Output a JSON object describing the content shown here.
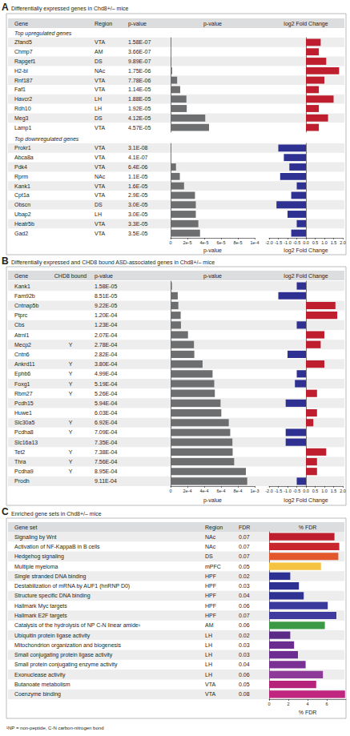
{
  "chart_data": [
    {
      "panel": "A",
      "type": "bar",
      "orientation": "horizontal",
      "title": "Differentially expressed genes in Chd8+/– mice",
      "columns": [
        "Gene",
        "Region",
        "p-value",
        "p-value",
        "log2 Fold Change"
      ],
      "groups": [
        {
          "label": "Top upregulated genes",
          "categories": [
            "Zfand5",
            "Chmp7",
            "Rapgef1",
            "H2-bl",
            "Rnf187",
            "Faf1",
            "Havcr2",
            "Rdh10",
            "Meg3",
            "Lamp1"
          ],
          "regions": [
            "VTA",
            "AM",
            "DS",
            "NAc",
            "VTA",
            "VTA",
            "LH",
            "LH",
            "DS",
            "VTA"
          ],
          "p_values": [
            1.58e-07,
            3.66e-07,
            9.89e-07,
            1.75e-06,
            7.78e-06,
            1.14e-05,
            1.88e-05,
            1.92e-05,
            4.12e-05,
            4.57e-05
          ],
          "p_value_labels": [
            "1.58E-07",
            "3.66E-07",
            "9.89E-07",
            "1.75E-06",
            "7.78E-06",
            "1.14E-05",
            "1.88E-05",
            "1.92E-05",
            "4.12E-05",
            "4.57E-05"
          ],
          "log2_fold_change": [
            0.8,
            0.7,
            1.1,
            1.8,
            1.0,
            0.7,
            1.5,
            0.7,
            1.2,
            0.7
          ],
          "colors": [
            "#be1e2d",
            "#be1e2d",
            "#be1e2d",
            "#be1e2d",
            "#be1e2d",
            "#be1e2d",
            "#be1e2d",
            "#be1e2d",
            "#be1e2d",
            "#be1e2d"
          ]
        },
        {
          "label": "Top downregulated genes",
          "categories": [
            "Prokr1",
            "Abca8a",
            "Pdk4",
            "Rprm",
            "Kank1",
            "Cpt1a",
            "Obscn",
            "Ubap2",
            "Heatr5b",
            "Gad2"
          ],
          "regions": [
            "VTA",
            "VTA",
            "VTA",
            "NAc",
            "VTA",
            "VTA",
            "DS",
            "LH",
            "VTA",
            "VTA"
          ],
          "p_values": [
            3.1e-08,
            4.1e-07,
            6.4e-06,
            1.1e-05,
            1.6e-05,
            2.9e-05,
            3e-05,
            3e-05,
            3.3e-05,
            3.5e-05
          ],
          "p_value_labels": [
            "3.1E-08",
            "4.1E-07",
            "6.4E-06",
            "1.1E-05",
            "1.6E-05",
            "2.9E-05",
            "3.0E-05",
            "3.0E-05",
            "3.3E-05",
            "3.5E-05"
          ],
          "log2_fold_change": [
            -1.5,
            -1.2,
            -0.9,
            -1.4,
            -0.5,
            -0.8,
            -1.6,
            -1.0,
            -0.5,
            -0.8
          ],
          "colors": [
            "#2e3192",
            "#2e3192",
            "#2e3192",
            "#2e3192",
            "#2e3192",
            "#2e3192",
            "#2e3192",
            "#2e3192",
            "#2e3192",
            "#2e3192"
          ]
        }
      ],
      "p_value_axis": {
        "xlabel": "p-value",
        "xlim": [
          0,
          0.0001
        ],
        "color": "#6d6e70",
        "xticks": [
          0,
          {
            "value": 2e-05,
            "label": "2e-5"
          },
          {
            "value": 4e-05,
            "label": "4e-5"
          },
          {
            "value": 6e-05,
            "label": "6e-5"
          },
          {
            "value": 8e-05,
            "label": "8e-5"
          },
          {
            "value": 0.0001,
            "label": "1e-4"
          }
        ]
      },
      "fold_change_axis": {
        "xlabel": "log2 Fold Change",
        "xlim": [
          -2,
          2
        ],
        "xticks": [
          {
            "value": -2,
            "label": "-2.0"
          },
          -1.5,
          {
            "value": -1,
            "label": "-1.0"
          },
          -0.5,
          {
            "value": 0,
            "label": "0.0"
          },
          0.5,
          {
            "value": 1,
            "label": "1.0"
          },
          1.5,
          {
            "value": 2,
            "label": "2.0"
          }
        ]
      }
    },
    {
      "panel": "B",
      "type": "bar",
      "orientation": "horizontal",
      "title": "Differentially expressed and CHD8 bound ASD-associated genes in Chd8+/– mice",
      "columns": [
        "Gene",
        "CHD8 bound",
        "p-value",
        "p-value",
        "log2 Fold Change"
      ],
      "groups": [
        {
          "categories": [
            "Kank1",
            "Fam92b",
            "Cntnap5b",
            "Ptprc",
            "Cbs",
            "Atrnl1",
            "Mecp2",
            "Cntn6",
            "Ankrd11",
            "Ephb6",
            "Foxg1",
            "Rbm27",
            "Pcdh15",
            "Huwe1",
            "Slc30a5",
            "Pcdha8",
            "Slc16a13",
            "Tet2",
            "Thra",
            "Pcdha9",
            "Prodh"
          ],
          "chd8_bound": [
            null,
            null,
            null,
            null,
            null,
            null,
            "Y",
            null,
            "Y",
            "Y",
            "Y",
            "Y",
            null,
            null,
            "Y",
            "Y",
            null,
            "Y",
            "Y",
            "Y",
            null
          ],
          "p_values": [
            1.58e-05,
            8.51e-05,
            9.22e-05,
            0.00012,
            0.000123,
            0.000207,
            0.000278,
            0.000282,
            0.00038,
            0.000499,
            0.000519,
            0.000526,
            0.000594,
            0.000603,
            0.000692,
            0.000709,
            0.000735,
            0.000738,
            0.000756,
            0.000895,
            0.000911
          ],
          "p_value_labels": [
            "1.58E-05",
            "8.51E-05",
            "9.22E-05",
            "1.20E-04",
            "1.23E-04",
            "2.07E-04",
            "2.78E-04",
            "2.82E-04",
            "3.80E-04",
            "4.99E-04",
            "5.19E-04",
            "5.26E-04",
            "5.94E-04",
            "6.03E-04",
            "6.92E-04",
            "7.09E-04",
            "7.35E-04",
            "7.38E-04",
            "7.56E-04",
            "8.95E-04",
            "9.11E-04"
          ],
          "log2_fold_change": [
            -0.5,
            -1.5,
            1.6,
            1.7,
            -0.5,
            1.0,
            0.8,
            -1.0,
            1.0,
            -0.5,
            -0.6,
            0.6,
            -1.1,
            0.6,
            0.4,
            -1.1,
            -1.1,
            1.1,
            0.6,
            0.6,
            -0.5
          ],
          "colors": [
            "#2e3192",
            "#2e3192",
            "#be1e2d",
            "#be1e2d",
            "#2e3192",
            "#be1e2d",
            "#be1e2d",
            "#2e3192",
            "#be1e2d",
            "#2e3192",
            "#2e3192",
            "#be1e2d",
            "#2e3192",
            "#be1e2d",
            "#be1e2d",
            "#2e3192",
            "#2e3192",
            "#be1e2d",
            "#be1e2d",
            "#be1e2d",
            "#2e3192"
          ]
        }
      ],
      "p_value_axis": {
        "xlabel": "p-value",
        "xlim": [
          0,
          0.001
        ],
        "color": "#6d6e70",
        "xticks": [
          0,
          {
            "value": 0.0002,
            "label": "2e-4"
          },
          {
            "value": 0.0004,
            "label": "4e-4"
          },
          {
            "value": 0.0006,
            "label": "6e-4"
          },
          {
            "value": 0.0008,
            "label": "8e-4"
          },
          {
            "value": 0.001,
            "label": "1e-3"
          }
        ]
      },
      "fold_change_axis": {
        "xlabel": "log2 Fold Change",
        "xlim": [
          -2,
          2
        ],
        "xticks": [
          {
            "value": -2,
            "label": "-2.0"
          },
          -1.5,
          {
            "value": -1,
            "label": "-1.0"
          },
          -0.5,
          {
            "value": 0,
            "label": "0.0"
          },
          0.5,
          {
            "value": 1,
            "label": "1.0"
          },
          1.5,
          {
            "value": 2,
            "label": "2.0"
          }
        ]
      }
    },
    {
      "panel": "C",
      "type": "bar",
      "orientation": "horizontal",
      "title": "Enriched gene sets in Chd8+/– mice",
      "columns": [
        "Gene set",
        "Region",
        "FDR",
        "% FDR"
      ],
      "categories": [
        "Signaling by Wnt",
        "Activation of NF-KappaB in B cells",
        "Hedgehog signaling",
        "Multiple myeloma",
        "Single stranded DNA binding",
        "Destabilization of mRNA by AUF1 (hnRNP D0)",
        "Structure specific DNA binding",
        "Hallmark Myc targets",
        "Hallmark E2F targets",
        "Catalysis of the hydrolysis of NP C-N linear amide¹",
        "Ubiquitin protein ligase activity",
        "Mitochondrion organization and biogenesis",
        "Small conjugating protein ligase activity",
        "Small protein conjugating enzyme activity",
        "Exonuclease activity",
        "Butanoate metabolism",
        "Coenzyme binding"
      ],
      "regions": [
        "NAc",
        "NAc",
        "DS",
        "mPFC",
        "HPF",
        "HPF",
        "HPF",
        "HPF",
        "HPF",
        "AM",
        "LH",
        "LH",
        "LH",
        "LH",
        "LH",
        "VTA",
        "VTA"
      ],
      "fdr": [
        0.07,
        0.07,
        0.07,
        0.05,
        0.02,
        0.03,
        0.04,
        0.06,
        0.07,
        0.06,
        0.02,
        0.03,
        0.03,
        0.04,
        0.06,
        0.05,
        0.08
      ],
      "values": [
        6.8,
        7.3,
        7.2,
        5.4,
        2.2,
        3.1,
        3.6,
        6.1,
        7.0,
        5.8,
        2.2,
        2.6,
        3.0,
        3.8,
        5.6,
        4.9,
        7.9
      ],
      "colors": [
        "#be1e2d",
        "#c8262c",
        "#e2572b",
        "#f5c342",
        "#2e3192",
        "#2e3192",
        "#2e3192",
        "#3a3a9c",
        "#3f3a9e",
        "#3c9a46",
        "#5b2a86",
        "#6a2c8f",
        "#6e2d91",
        "#7a3193",
        "#8e3a98",
        "#b5247a",
        "#c0267f"
      ],
      "xlabel": "% FDR",
      "xlim": [
        0,
        8
      ],
      "xticks": [
        0,
        2,
        4,
        6
      ],
      "footnote": "¹NP = non-peptide, C-N carbon-nitrogen bond"
    }
  ]
}
